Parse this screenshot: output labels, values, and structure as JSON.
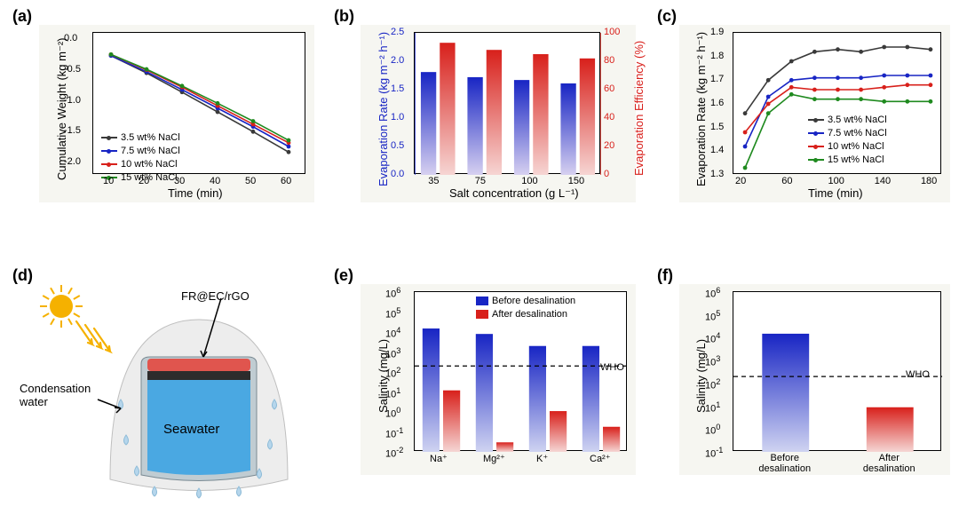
{
  "panel_labels": {
    "a": "(a)",
    "b": "(b)",
    "c": "(c)",
    "d": "(d)",
    "e": "(e)",
    "f": "(f)"
  },
  "a": {
    "bg_color": "#f6f6f1",
    "xlabel": "Time (min)",
    "ylabel": "Cumulative Weight (kg m⁻²)",
    "xlim": [
      5,
      65
    ],
    "ylim": [
      -2.2,
      0.1
    ],
    "xticks": [
      10,
      20,
      30,
      40,
      50,
      60
    ],
    "yticks": [
      0.0,
      -0.5,
      -1.0,
      -1.5,
      -2.0
    ],
    "series": [
      {
        "name": "3.5 wt% NaCl",
        "color": "#3a3a3a",
        "x": [
          10,
          20,
          30,
          40,
          50,
          60
        ],
        "y": [
          -0.27,
          -0.55,
          -0.86,
          -1.18,
          -1.5,
          -1.83
        ]
      },
      {
        "name": "7.5 wt% NaCl",
        "color": "#1825c4",
        "x": [
          10,
          20,
          30,
          40,
          50,
          60
        ],
        "y": [
          -0.27,
          -0.53,
          -0.82,
          -1.12,
          -1.42,
          -1.74
        ]
      },
      {
        "name": "10 wt% NaCl",
        "color": "#d8201b",
        "x": [
          10,
          20,
          30,
          40,
          50,
          60
        ],
        "y": [
          -0.25,
          -0.5,
          -0.78,
          -1.08,
          -1.38,
          -1.68
        ]
      },
      {
        "name": "15 wt% NaCl",
        "color": "#1f8a1f",
        "x": [
          10,
          20,
          30,
          40,
          50,
          60
        ],
        "y": [
          -0.25,
          -0.49,
          -0.76,
          -1.04,
          -1.33,
          -1.64
        ]
      }
    ]
  },
  "b": {
    "bg_color": "#f6f6f1",
    "xlabel": "Salt concentration (g L⁻¹)",
    "ylabel_left": "Evaporation Rate (kg m⁻² h⁻¹)",
    "ylabel_right": "Evaporation Efficiency (%)",
    "categories": [
      "35",
      "75",
      "100",
      "150"
    ],
    "ylim_left": [
      0,
      2.5
    ],
    "yticks_left": [
      0.0,
      0.5,
      1.0,
      1.5,
      2.0,
      2.5
    ],
    "ylim_right": [
      0,
      100
    ],
    "yticks_right": [
      0,
      20,
      40,
      60,
      80,
      100
    ],
    "rate_values": [
      1.81,
      1.72,
      1.67,
      1.61
    ],
    "eff_values": [
      93,
      88,
      85,
      82
    ],
    "rate_color_top": "#1825c4",
    "rate_color_bot": "#d6d0f0",
    "eff_color_top": "#d8201b",
    "eff_color_bot": "#f6d5d3"
  },
  "c": {
    "bg_color": "#f6f6f1",
    "xlabel": "Time (min)",
    "ylabel": "Evaporation Rate (kg m⁻² h⁻¹)",
    "xlim": [
      10,
      190
    ],
    "ylim": [
      1.3,
      1.9
    ],
    "xticks": [
      20,
      60,
      100,
      140,
      180
    ],
    "yticks": [
      1.3,
      1.4,
      1.5,
      1.6,
      1.7,
      1.8,
      1.9
    ],
    "series": [
      {
        "name": "3.5 wt% NaCl",
        "color": "#3a3a3a",
        "x": [
          20,
          40,
          60,
          80,
          100,
          120,
          140,
          160,
          180
        ],
        "y": [
          1.56,
          1.7,
          1.78,
          1.82,
          1.83,
          1.82,
          1.84,
          1.84,
          1.83
        ]
      },
      {
        "name": "7.5 wt% NaCl",
        "color": "#1825c4",
        "x": [
          20,
          40,
          60,
          80,
          100,
          120,
          140,
          160,
          180
        ],
        "y": [
          1.42,
          1.63,
          1.7,
          1.71,
          1.71,
          1.71,
          1.72,
          1.72,
          1.72
        ]
      },
      {
        "name": "10 wt% NaCl",
        "color": "#d8201b",
        "x": [
          20,
          40,
          60,
          80,
          100,
          120,
          140,
          160,
          180
        ],
        "y": [
          1.48,
          1.6,
          1.67,
          1.66,
          1.66,
          1.66,
          1.67,
          1.68,
          1.68
        ]
      },
      {
        "name": "15 wt% NaCl",
        "color": "#1f8a1f",
        "x": [
          20,
          40,
          60,
          80,
          100,
          120,
          140,
          160,
          180
        ],
        "y": [
          1.33,
          1.56,
          1.64,
          1.62,
          1.62,
          1.62,
          1.61,
          1.61,
          1.61
        ]
      }
    ]
  },
  "d": {
    "labels": {
      "fr": "FR@EC/rGO",
      "cond": "Condensation\nwater",
      "sea": "Seawater"
    },
    "colors": {
      "sun": "#f5b100",
      "dome": "#e6e6e6",
      "jar": "#9bb0bb",
      "top": "#e0554e",
      "mid": "#2c2c2c",
      "water": "#4aa8e2",
      "drop": "#b6d6ec"
    }
  },
  "e": {
    "bg_color": "#f6f6f1",
    "ylabel": "Salinity (mg/L)",
    "categories": [
      "Na⁺",
      "Mg²⁺",
      "K⁺",
      "Ca²⁺"
    ],
    "ylim_log": [
      -2,
      6
    ],
    "yticks_exp": [
      -2,
      -1,
      0,
      1,
      2,
      3,
      4,
      5,
      6
    ],
    "who_line_exp": 2.3,
    "who_text": "WHO",
    "legend": [
      "Before desalination",
      "After desalination"
    ],
    "before": [
      15000.0,
      8000.0,
      2000.0,
      2000.0
    ],
    "after": [
      12,
      0.03,
      1.1,
      0.18
    ],
    "before_color_top": "#1825c4",
    "before_color_bot": "#cfd3f1",
    "after_color_top": "#d8201b",
    "after_color_bot": "#f5d6d4"
  },
  "f": {
    "bg_color": "#f6f6f1",
    "ylabel": "Salinity (mg/L)",
    "categories": [
      "Before\ndesalination",
      "After\ndesalination"
    ],
    "ylim_log": [
      -1,
      6
    ],
    "yticks_exp": [
      -1,
      0,
      1,
      2,
      3,
      4,
      5,
      6
    ],
    "who_line_exp": 2.3,
    "who_text": "WHO",
    "before": 15000.0,
    "after": 9,
    "before_color_top": "#1825c4",
    "before_color_bot": "#cfd3f1",
    "after_color_top": "#d8201b",
    "after_color_bot": "#f5d6d4"
  },
  "text_color": "#000000"
}
